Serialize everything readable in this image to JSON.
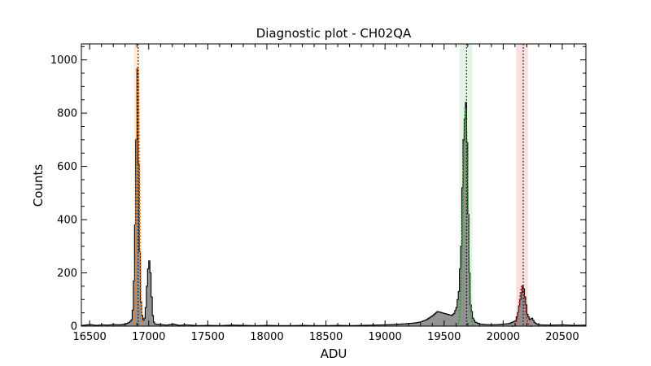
{
  "chart_data": {
    "type": "histogram",
    "title": "Diagnostic plot - CH02QA",
    "xlabel": "ADU",
    "ylabel": "Counts",
    "xlim": [
      16430,
      20700
    ],
    "ylim": [
      0,
      1060
    ],
    "xticks": [
      16500,
      17000,
      17500,
      18000,
      18500,
      19000,
      19500,
      20000,
      20500
    ],
    "yticks": [
      0,
      200,
      400,
      600,
      800,
      1000
    ],
    "grid": false,
    "bin_width": 10,
    "histogram": {
      "fill_color": "#808080",
      "edge_color": "#000000",
      "bins": [
        [
          16430,
          3
        ],
        [
          16460,
          4
        ],
        [
          16500,
          6
        ],
        [
          16550,
          3
        ],
        [
          16600,
          5
        ],
        [
          16650,
          4
        ],
        [
          16700,
          6
        ],
        [
          16750,
          5
        ],
        [
          16800,
          8
        ],
        [
          16830,
          14
        ],
        [
          16840,
          18
        ],
        [
          16850,
          24
        ],
        [
          16860,
          60
        ],
        [
          16870,
          170
        ],
        [
          16880,
          380
        ],
        [
          16890,
          700
        ],
        [
          16900,
          968
        ],
        [
          16910,
          610
        ],
        [
          16920,
          280
        ],
        [
          16930,
          90
        ],
        [
          16940,
          40
        ],
        [
          16950,
          22
        ],
        [
          16960,
          30
        ],
        [
          16970,
          70
        ],
        [
          16980,
          150
        ],
        [
          16990,
          215
        ],
        [
          17000,
          245
        ],
        [
          17010,
          200
        ],
        [
          17020,
          110
        ],
        [
          17030,
          40
        ],
        [
          17040,
          15
        ],
        [
          17050,
          8
        ],
        [
          17100,
          6
        ],
        [
          17150,
          4
        ],
        [
          17200,
          8
        ],
        [
          17250,
          3
        ],
        [
          17300,
          5
        ],
        [
          17350,
          4
        ],
        [
          17400,
          2
        ],
        [
          17500,
          3
        ],
        [
          17600,
          2
        ],
        [
          17700,
          4
        ],
        [
          17800,
          3
        ],
        [
          17900,
          2
        ],
        [
          18000,
          3
        ],
        [
          18100,
          2
        ],
        [
          18200,
          2
        ],
        [
          18300,
          3
        ],
        [
          18400,
          2
        ],
        [
          18500,
          2
        ],
        [
          18600,
          3
        ],
        [
          18700,
          2
        ],
        [
          18800,
          3
        ],
        [
          18900,
          4
        ],
        [
          19000,
          5
        ],
        [
          19100,
          7
        ],
        [
          19200,
          10
        ],
        [
          19250,
          12
        ],
        [
          19300,
          16
        ],
        [
          19350,
          25
        ],
        [
          19400,
          40
        ],
        [
          19440,
          55
        ],
        [
          19480,
          50
        ],
        [
          19520,
          45
        ],
        [
          19560,
          40
        ],
        [
          19580,
          48
        ],
        [
          19600,
          70
        ],
        [
          19620,
          130
        ],
        [
          19640,
          300
        ],
        [
          19650,
          520
        ],
        [
          19660,
          700
        ],
        [
          19670,
          780
        ],
        [
          19680,
          840
        ],
        [
          19690,
          690
        ],
        [
          19700,
          420
        ],
        [
          19710,
          200
        ],
        [
          19720,
          80
        ],
        [
          19740,
          30
        ],
        [
          19760,
          15
        ],
        [
          19800,
          8
        ],
        [
          19850,
          6
        ],
        [
          19900,
          5
        ],
        [
          19950,
          6
        ],
        [
          20000,
          8
        ],
        [
          20050,
          10
        ],
        [
          20100,
          20
        ],
        [
          20120,
          50
        ],
        [
          20140,
          100
        ],
        [
          20160,
          152
        ],
        [
          20170,
          140
        ],
        [
          20180,
          110
        ],
        [
          20190,
          80
        ],
        [
          20200,
          45
        ],
        [
          20220,
          25
        ],
        [
          20240,
          30
        ],
        [
          20260,
          15
        ],
        [
          20280,
          8
        ],
        [
          20300,
          5
        ],
        [
          20400,
          4
        ],
        [
          20500,
          5
        ],
        [
          20600,
          3
        ],
        [
          20690,
          4
        ]
      ]
    },
    "fit_curves": [
      {
        "color": "#ff7f0e",
        "peak": 16910,
        "amplitude": 970,
        "sigma": 12
      },
      {
        "color": "#2ca02c",
        "peak": 19680,
        "amplitude": 820,
        "sigma": 20
      },
      {
        "color": "#d62728",
        "peak": 20160,
        "amplitude": 150,
        "sigma": 22
      }
    ],
    "bands": [
      {
        "color": "#ff7f0e",
        "from": 16875,
        "to": 16920,
        "opacity": 0.18
      },
      {
        "color": "#2ca02c",
        "from": 19630,
        "to": 19740,
        "opacity": 0.12
      },
      {
        "color": "#d62728",
        "from": 20110,
        "to": 20210,
        "opacity": 0.15
      }
    ],
    "vlines": [
      16910,
      19690,
      20170
    ]
  }
}
